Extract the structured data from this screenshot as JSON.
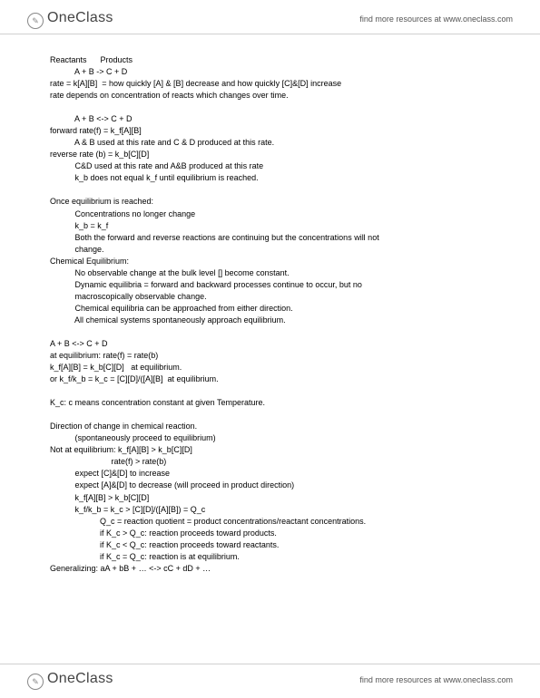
{
  "header": {
    "logo_one": "One",
    "logo_class": "Class",
    "tagline": "find more resources at www.oneclass.com"
  },
  "footer": {
    "logo_one": "One",
    "logo_class": "Class",
    "tagline": "find more resources at www.oneclass.com"
  },
  "lines": [
    "Reactants      Products",
    "           A + B -> C + D",
    "rate = k[A][B]  = how quickly [A] & [B] decrease and how quickly [C]&[D] increase",
    "rate depends on concentration of reacts which changes over time.",
    "",
    "           A + B <-> C + D",
    "forward rate(f) = k_f[A][B]",
    "           A & B used at this rate and C & D produced at this rate.",
    "reverse rate (b) = k_b[C][D]",
    "           C&D used at this rate and A&B produced at this rate",
    "           k_b does not equal k_f until equilibrium is reached.",
    "",
    "Once equilibrium is reached:",
    "           Concentrations no longer change",
    "           k_b = k_f",
    "           Both the forward and reverse reactions are continuing but the concentrations will not",
    "           change.",
    "Chemical Equilibrium:",
    "           No observable change at the bulk level [] become constant.",
    "           Dynamic equilibria = forward and backward processes continue to occur, but no",
    "           macroscopically observable change.",
    "           Chemical equilibria can be approached from either direction.",
    "           All chemical systems spontaneously approach equilibrium.",
    "",
    "A + B <-> C + D",
    "at equilibrium: rate(f) = rate(b)",
    "k_f[A][B] = k_b[C][D]   at equilibrium.",
    "or k_f/k_b = k_c = [C][D]/([A][B]  at equilibrium.",
    "",
    "K_c: c means concentration constant at given Temperature.",
    "",
    "Direction of change in chemical reaction.",
    "           (spontaneously proceed to equilibrium)",
    "Not at equilibrium: k_f[A][B] > k_b[C][D]",
    "                           rate(f) > rate(b)",
    "           expect [C]&[D] to increase",
    "           expect [A]&[D] to decrease (will proceed in product direction)",
    "           k_f[A][B] > k_b[C][D]",
    "           k_f/k_b = k_c > [C][D]/([A][B]) = Q_c",
    "                      Q_c = reaction quotient = product concentrations/reactant concentrations.",
    "                      if K_c > Q_c: reaction proceeds toward products.",
    "                      if K_c < Q_c: reaction proceeds toward reactants.",
    "                      if K_c = Q_c: reaction is at equilibrium.",
    "Generalizing: aA + bB + … <-> cC + dD + …"
  ]
}
